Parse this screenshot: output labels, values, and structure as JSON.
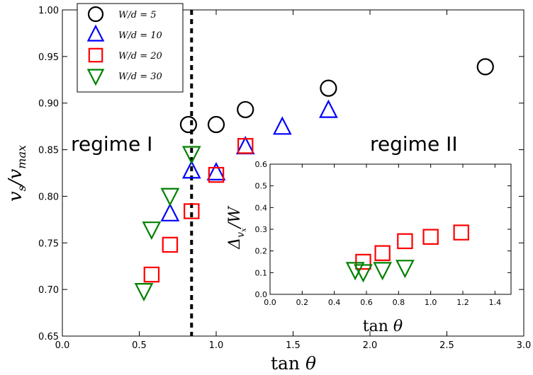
{
  "chart_data": {
    "type": "scatter",
    "xlabel": "tan θ",
    "ylabel": "v_s / v_max",
    "xlim": [
      0.0,
      3.0
    ],
    "ylim": [
      0.65,
      1.0
    ],
    "xticks": [
      "0.0",
      "0.5",
      "1.0",
      "1.5",
      "2.0",
      "2.5",
      "3.0"
    ],
    "yticks": [
      "0.65",
      "0.70",
      "0.75",
      "0.80",
      "0.85",
      "0.90",
      "0.95",
      "1.00"
    ],
    "grid": false,
    "legend_position": "top-left",
    "vline": {
      "x": 0.84,
      "style": "dotted",
      "color": "#000000"
    },
    "annotations": [
      {
        "text": "regime I",
        "x": 0.35,
        "y": 0.855
      },
      {
        "text": "regime II",
        "x": 2.4,
        "y": 0.855
      }
    ],
    "series": [
      {
        "name": "W/d = 5",
        "marker": "circle",
        "color": "#000000",
        "x": [
          0.82,
          1.0,
          1.19,
          1.73,
          2.75
        ],
        "y": [
          0.877,
          0.877,
          0.893,
          0.916,
          0.939
        ]
      },
      {
        "name": "W/d = 10",
        "marker": "triangle-up",
        "color": "#0000ff",
        "x": [
          0.7,
          0.84,
          1.0,
          1.19,
          1.43,
          1.73
        ],
        "y": [
          0.781,
          0.827,
          0.825,
          0.853,
          0.874,
          0.892
        ]
      },
      {
        "name": "W/d = 20",
        "marker": "square",
        "color": "#ff0000",
        "x": [
          0.58,
          0.7,
          0.84,
          1.0,
          1.19
        ],
        "y": [
          0.716,
          0.748,
          0.784,
          0.823,
          0.854
        ]
      },
      {
        "name": "W/d = 30",
        "marker": "triangle-down",
        "color": "#008000",
        "x": [
          0.53,
          0.58,
          0.7,
          0.84
        ],
        "y": [
          0.699,
          0.765,
          0.801,
          0.846
        ]
      }
    ],
    "inset": {
      "type": "scatter",
      "xlabel": "tan θ",
      "ylabel": "Δ_vx / W",
      "xlim": [
        0.0,
        1.5
      ],
      "ylim": [
        0.0,
        0.6
      ],
      "xticks": [
        "0.0",
        "0.2",
        "0.4",
        "0.6",
        "0.8",
        "1.0",
        "1.2",
        "1.4"
      ],
      "yticks": [
        "0.0",
        "0.1",
        "0.2",
        "0.3",
        "0.4",
        "0.5",
        "0.6"
      ],
      "series": [
        {
          "name": "W/d = 20",
          "marker": "square",
          "color": "#ff0000",
          "x": [
            0.58,
            0.7,
            0.84,
            1.0,
            1.19
          ],
          "y": [
            0.15,
            0.19,
            0.245,
            0.265,
            0.285
          ]
        },
        {
          "name": "W/d = 30",
          "marker": "triangle-down",
          "color": "#008000",
          "x": [
            0.53,
            0.58,
            0.7,
            0.84
          ],
          "y": [
            0.115,
            0.105,
            0.115,
            0.125
          ]
        }
      ]
    }
  }
}
